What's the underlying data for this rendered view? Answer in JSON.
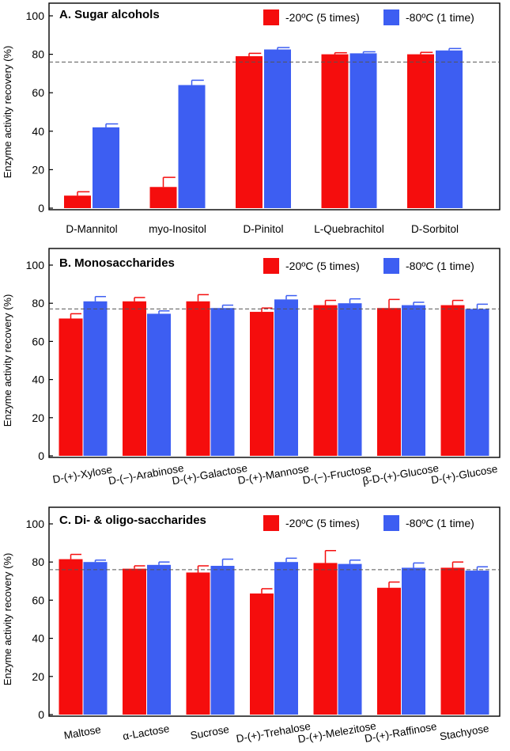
{
  "colors": {
    "series1": "#f50d0d",
    "series2": "#3d5ef2",
    "reference_line": "#555555",
    "axis": "#000000"
  },
  "chart_data": [
    {
      "type": "bar",
      "title": "A.  Sugar alcohols",
      "ylabel": "Enzyme activity recovery (%)",
      "ylim": [
        0,
        100
      ],
      "yticks": [
        0,
        20,
        40,
        60,
        80,
        100
      ],
      "reference_line": 76,
      "categories": [
        "D-Mannitol",
        "myo-Inositol",
        "D-Pinitol",
        "L-Quebrachitol",
        "D-Sorbitol"
      ],
      "tick_label_rotation": 0,
      "legend_position": "top-right",
      "series": [
        {
          "name": "-20ºC (5 times)",
          "values": [
            6.5,
            11,
            79,
            80,
            80
          ],
          "errors": [
            2,
            5,
            1.5,
            0.8,
            1
          ]
        },
        {
          "name": "-80ºC (1 time)",
          "values": [
            42,
            64,
            82.5,
            80.5,
            82
          ],
          "errors": [
            1.8,
            2.5,
            1,
            0.8,
            1
          ]
        }
      ]
    },
    {
      "type": "bar",
      "title": "B.  Monosaccharides",
      "ylabel": "Enzyme activity recovery (%)",
      "ylim": [
        0,
        100
      ],
      "yticks": [
        0,
        20,
        40,
        60,
        80,
        100
      ],
      "reference_line": 77,
      "categories": [
        "D-(+)-Xylose",
        "D-(−)-Arabinose",
        "D-(+)-Galactose",
        "D-(+)-Mannose",
        "D-(−)-Fructose",
        "β-D-(+)-Glucose",
        "D-(+)-Glucose"
      ],
      "tick_label_rotation": -10,
      "legend_position": "top-right",
      "series": [
        {
          "name": "-20ºC (5 times)",
          "values": [
            72,
            81,
            81,
            75.5,
            79,
            77.5,
            79
          ],
          "errors": [
            2.5,
            2,
            3.5,
            2,
            2.5,
            4.5,
            2.5
          ]
        },
        {
          "name": "-80ºC (1 time)",
          "values": [
            81,
            74.5,
            77.5,
            82,
            80,
            79,
            77
          ],
          "errors": [
            2.5,
            1.5,
            1.5,
            2,
            2.3,
            1.5,
            2.5
          ]
        }
      ]
    },
    {
      "type": "bar",
      "title": "C.  Di- & oligo-saccharides",
      "ylabel": "Enzyme activity recovery (%)",
      "ylim": [
        0,
        100
      ],
      "yticks": [
        0,
        20,
        40,
        60,
        80,
        100
      ],
      "reference_line": 76,
      "categories": [
        "Maltose",
        "α-Lactose",
        "Sucrose",
        "D-(+)-Trehalose",
        "D-(+)-Melezitose",
        "D-(+)-Raffinose",
        "Stachyose"
      ],
      "tick_label_rotation": -10,
      "legend_position": "top-right",
      "series": [
        {
          "name": "-20ºC (5 times)",
          "values": [
            81.5,
            76.5,
            74.5,
            63.5,
            79.5,
            66.5,
            77
          ],
          "errors": [
            2.5,
            1.5,
            3.5,
            2.5,
            6.5,
            3,
            3
          ]
        },
        {
          "name": "-80ºC (1 time)",
          "values": [
            80,
            78.5,
            78,
            80,
            79,
            77,
            75.5
          ],
          "errors": [
            1,
            1.5,
            3.5,
            2,
            2,
            2.5,
            2
          ]
        }
      ]
    }
  ]
}
